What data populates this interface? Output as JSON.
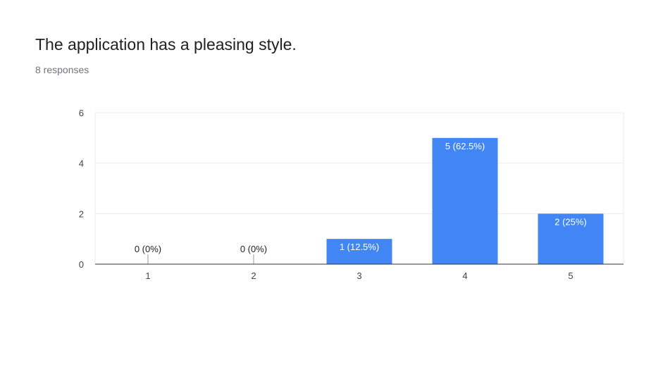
{
  "header": {
    "question": "The application has a pleasing style.",
    "responses": "8 responses"
  },
  "colors": {
    "bar": "#4285f4",
    "grid": "#ebebeb",
    "axis": "#333333",
    "tick_text": "#444444",
    "label_inside": "#ffffff",
    "label_outside": "#222222",
    "zero_marker": "#999999"
  },
  "chart_data": {
    "type": "bar",
    "title": "The application has a pleasing style.",
    "xlabel": "",
    "ylabel": "",
    "categories": [
      "1",
      "2",
      "3",
      "4",
      "5"
    ],
    "values": [
      0,
      0,
      1,
      5,
      2
    ],
    "data_labels": [
      "0 (0%)",
      "0 (0%)",
      "1 (12.5%)",
      "5 (62.5%)",
      "2 (25%)"
    ],
    "ylim": [
      0,
      6
    ],
    "yticks": [
      0,
      2,
      4,
      6
    ],
    "grid": true,
    "legend": "none"
  }
}
